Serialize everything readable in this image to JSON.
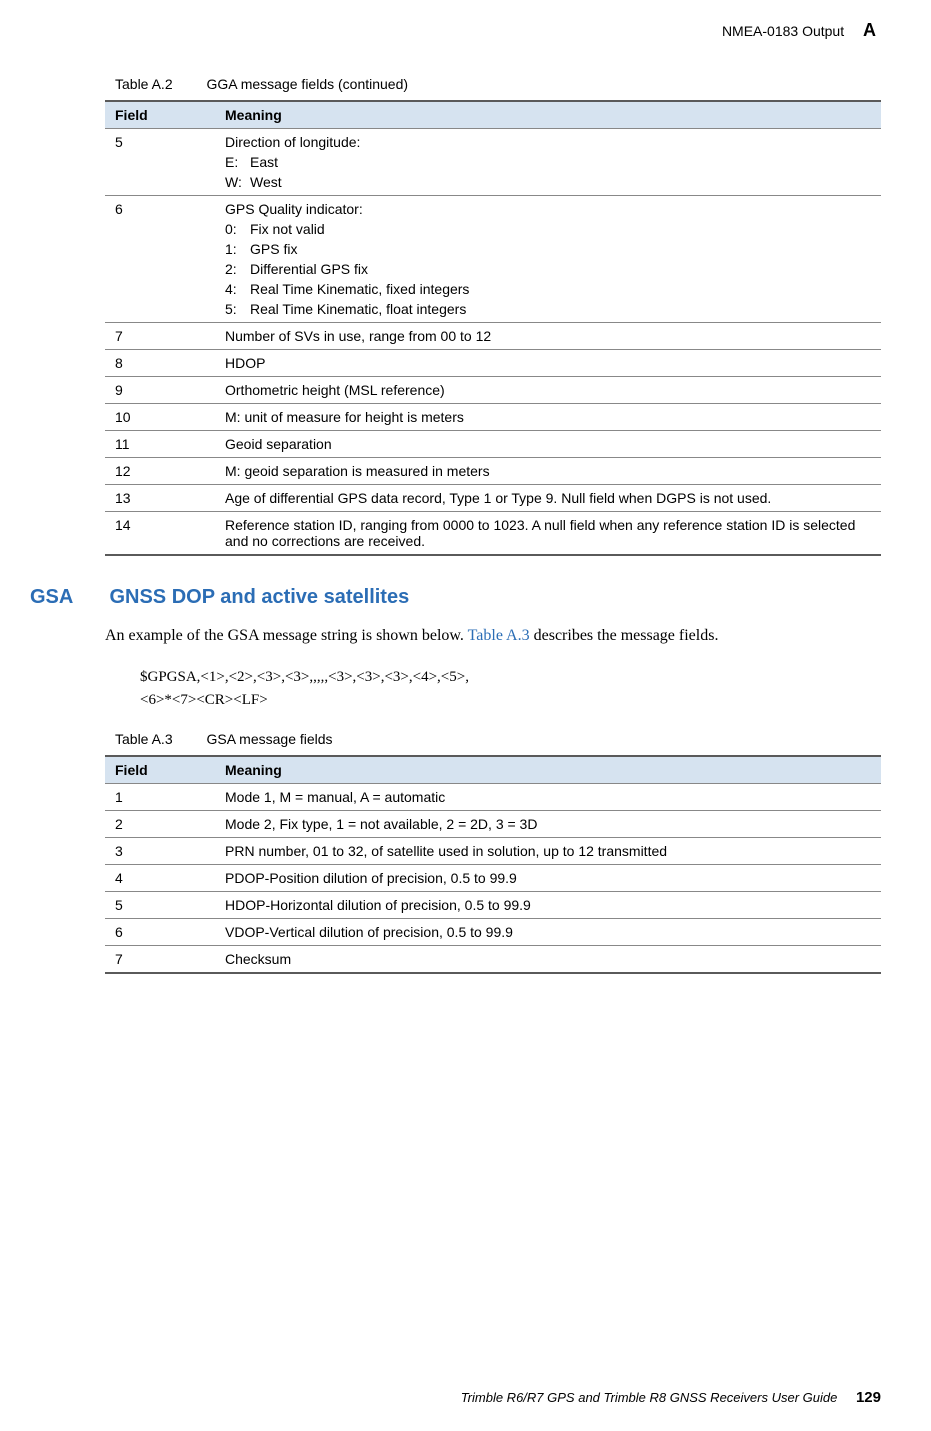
{
  "header": {
    "section": "NMEA-0183 Output",
    "appendix": "A"
  },
  "table_a2": {
    "caption_label": "Table A.2",
    "caption_title": "GGA message fields (continued)",
    "headers": {
      "field": "Field",
      "meaning": "Meaning"
    },
    "rows": [
      {
        "field": "5",
        "meaning": "Direction of longitude:",
        "subs": [
          {
            "k": "E:",
            "v": "East"
          },
          {
            "k": "W:",
            "v": "West"
          }
        ]
      },
      {
        "field": "6",
        "meaning": "GPS Quality indicator:",
        "subs": [
          {
            "k": "0:",
            "v": "Fix not valid"
          },
          {
            "k": "1:",
            "v": "GPS fix"
          },
          {
            "k": "2:",
            "v": "Differential GPS fix"
          },
          {
            "k": "4:",
            "v": "Real Time Kinematic, fixed integers"
          },
          {
            "k": "5:",
            "v": "Real Time Kinematic, float integers"
          }
        ]
      },
      {
        "field": "7",
        "meaning": "Number of SVs in use, range from 00 to 12"
      },
      {
        "field": "8",
        "meaning": "HDOP"
      },
      {
        "field": "9",
        "meaning": "Orthometric height (MSL reference)"
      },
      {
        "field": "10",
        "meaning": "M:   unit of measure for height is meters"
      },
      {
        "field": "11",
        "meaning": "Geoid separation"
      },
      {
        "field": "12",
        "meaning": "M:  geoid separation is measured in meters"
      },
      {
        "field": "13",
        "meaning": "Age of differential GPS data record, Type 1 or Type 9. Null field when DGPS is not used."
      },
      {
        "field": "14",
        "meaning": "Reference station ID, ranging from 0000 to 1023. A null field when any reference station ID is selected and no corrections are received."
      }
    ]
  },
  "section": {
    "tag": "GSA",
    "title": "GNSS DOP and active satellites",
    "intro_pre": "An example of the GSA message string is shown below. ",
    "intro_link": "Table A.3",
    "intro_post": " describes the message fields.",
    "code_line1": "$GPGSA,<1>,<2>,<3>,<3>,,,,,<3>,<3>,<3>,<4>,<5>,",
    "code_line2": "<6>*<7><CR><LF>"
  },
  "table_a3": {
    "caption_label": "Table A.3",
    "caption_title": "GSA message fields",
    "headers": {
      "field": "Field",
      "meaning": "Meaning"
    },
    "rows": [
      {
        "field": "1",
        "meaning": "Mode 1, M = manual, A = automatic"
      },
      {
        "field": "2",
        "meaning": "Mode 2, Fix type, 1 = not available, 2 = 2D, 3 = 3D"
      },
      {
        "field": "3",
        "meaning": "PRN number, 01 to 32, of satellite used in solution, up to 12 transmitted"
      },
      {
        "field": "4",
        "meaning": "PDOP-Position dilution of precision, 0.5 to 99.9"
      },
      {
        "field": "5",
        "meaning": "HDOP-Horizontal dilution of precision, 0.5 to 99.9"
      },
      {
        "field": "6",
        "meaning": "VDOP-Vertical dilution of precision, 0.5 to 99.9"
      },
      {
        "field": "7",
        "meaning": "Checksum"
      }
    ]
  },
  "footer": {
    "text": "Trimble R6/R7 GPS and Trimble R8 GNSS Receivers User Guide",
    "page": "129"
  },
  "colors": {
    "header_bg": "#d6e3f0",
    "link_color": "#2b6db5",
    "border_dark": "#5a5a5a",
    "border_light": "#888888"
  }
}
